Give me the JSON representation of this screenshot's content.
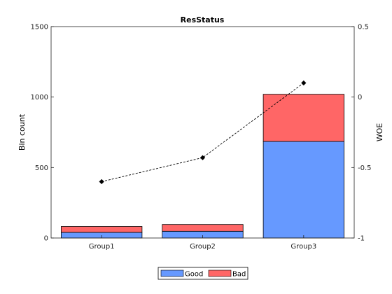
{
  "chart_data": {
    "type": "bar",
    "stacked": true,
    "title": "ResStatus",
    "xlabel": "",
    "ylabel": "Bin count",
    "y2label": "WOE",
    "categories": [
      "Group1",
      "Group2",
      "Group3"
    ],
    "ylim": [
      0,
      1500
    ],
    "yticks": [
      "0",
      "500",
      "1000",
      "1500"
    ],
    "y2lim": [
      -1,
      0.5
    ],
    "y2ticks": [
      "-1",
      "-0.5",
      "0",
      "0.5"
    ],
    "series": [
      {
        "name": "Good",
        "values": [
          40,
          48,
          685
        ],
        "color": "#6699FF"
      },
      {
        "name": "Bad",
        "values": [
          42,
          48,
          335
        ],
        "color": "#FF6666"
      }
    ],
    "line": {
      "axis": "right",
      "values": [
        -0.6,
        -0.43,
        0.1
      ],
      "color": "#000000",
      "marker": "diamond",
      "style": "dashed"
    },
    "legend_position": "bottom-center",
    "grid": false
  }
}
